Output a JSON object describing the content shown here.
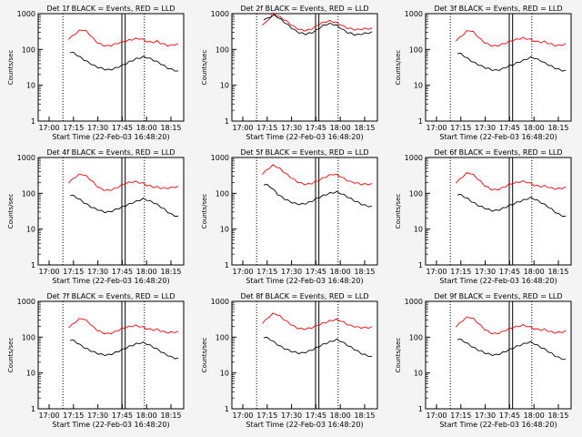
{
  "chart_data": [
    {
      "type": "line",
      "title": "Det 1f BLACK = Events, RED = LLD",
      "xlabel": "Start Time (22-Feb-03 16:48:20)",
      "ylabel": "Counts/sec",
      "x_ticks": [
        "17:00",
        "17:15",
        "17:30",
        "17:45",
        "18:00",
        "18:15"
      ],
      "y_ticks": [
        "1",
        "10",
        "100",
        "1000"
      ],
      "ylim": [
        1,
        1000
      ],
      "yscale": "log",
      "series": [
        {
          "color": "#ff0000",
          "values": [
            200,
            230,
            280,
            330,
            360,
            320,
            260,
            200,
            160,
            140,
            130,
            125,
            130,
            140,
            150,
            160,
            170,
            180,
            190,
            200,
            200,
            190,
            170,
            160,
            160,
            170,
            150,
            140,
            130,
            130,
            140,
            140
          ]
        },
        {
          "color": "#000000",
          "values": [
            85,
            80,
            70,
            60,
            52,
            45,
            40,
            35,
            32,
            30,
            28,
            27,
            28,
            30,
            33,
            36,
            40,
            45,
            50,
            55,
            58,
            62,
            60,
            55,
            50,
            45,
            40,
            35,
            30,
            28,
            26,
            24
          ]
        }
      ]
    },
    {
      "type": "line",
      "title": "Det 2f BLACK = Events, RED = LLD",
      "xlabel": "Start Time (22-Feb-03 16:48:20)",
      "ylabel": "Counts/sec",
      "x_ticks": [
        "17:00",
        "17:15",
        "17:30",
        "17:45",
        "18:00",
        "18:15"
      ],
      "y_ticks": [
        "1",
        "10",
        "100",
        "1000"
      ],
      "ylim": [
        1,
        1000
      ],
      "yscale": "log",
      "series": [
        {
          "color": "#ff0000",
          "values": [
            500,
            550,
            750,
            1000,
            900,
            800,
            700,
            600,
            500,
            430,
            380,
            350,
            340,
            350,
            380,
            430,
            500,
            560,
            600,
            620,
            600,
            560,
            500,
            440,
            400,
            380,
            360,
            360,
            370,
            380,
            380,
            380
          ]
        },
        {
          "color": "#000000",
          "values": [
            700,
            720,
            820,
            900,
            800,
            680,
            570,
            480,
            400,
            340,
            300,
            280,
            270,
            280,
            300,
            340,
            400,
            460,
            500,
            520,
            500,
            460,
            400,
            340,
            300,
            280,
            260,
            260,
            270,
            280,
            290,
            300
          ]
        }
      ]
    },
    {
      "type": "line",
      "title": "Det 3f BLACK = Events, RED = LLD",
      "xlabel": "Start Time (22-Feb-03 16:48:20)",
      "ylabel": "Counts/sec",
      "x_ticks": [
        "17:00",
        "17:15",
        "17:30",
        "17:45",
        "18:00",
        "18:15"
      ],
      "y_ticks": [
        "1",
        "10",
        "100",
        "1000"
      ],
      "ylim": [
        1,
        1000
      ],
      "yscale": "log",
      "series": [
        {
          "color": "#ff0000",
          "values": [
            180,
            210,
            260,
            320,
            340,
            300,
            240,
            190,
            160,
            140,
            130,
            125,
            130,
            140,
            150,
            165,
            180,
            190,
            200,
            210,
            200,
            190,
            175,
            165,
            160,
            165,
            150,
            140,
            130,
            130,
            135,
            140
          ]
        },
        {
          "color": "#000000",
          "values": [
            80,
            75,
            65,
            55,
            48,
            42,
            38,
            34,
            31,
            29,
            27,
            26,
            27,
            29,
            32,
            35,
            38,
            42,
            46,
            50,
            55,
            60,
            58,
            52,
            48,
            42,
            38,
            34,
            30,
            28,
            26,
            25
          ]
        }
      ]
    },
    {
      "type": "line",
      "title": "Det 4f BLACK = Events, RED = LLD",
      "xlabel": "Start Time (22-Feb-03 16:48:20)",
      "ylabel": "Counts/sec",
      "x_ticks": [
        "17:00",
        "17:15",
        "17:30",
        "17:45",
        "18:00",
        "18:15"
      ],
      "y_ticks": [
        "1",
        "10",
        "100",
        "1000"
      ],
      "ylim": [
        1,
        1000
      ],
      "yscale": "log",
      "series": [
        {
          "color": "#ff0000",
          "values": [
            200,
            240,
            290,
            330,
            340,
            300,
            250,
            200,
            160,
            135,
            125,
            120,
            125,
            135,
            150,
            170,
            190,
            200,
            210,
            210,
            200,
            190,
            170,
            160,
            150,
            150,
            140,
            140,
            140,
            145,
            150,
            150
          ]
        },
        {
          "color": "#000000",
          "values": [
            90,
            85,
            75,
            65,
            55,
            48,
            42,
            38,
            35,
            32,
            30,
            30,
            32,
            35,
            38,
            42,
            46,
            50,
            55,
            60,
            65,
            70,
            66,
            60,
            55,
            48,
            42,
            36,
            30,
            26,
            24,
            22
          ]
        }
      ]
    },
    {
      "type": "line",
      "title": "Det 5f BLACK = Events, RED = LLD",
      "xlabel": "Start Time (22-Feb-03 16:48:20)",
      "ylabel": "Counts/sec",
      "x_ticks": [
        "17:00",
        "17:15",
        "17:30",
        "17:45",
        "18:00",
        "18:15"
      ],
      "y_ticks": [
        "1",
        "10",
        "100",
        "1000"
      ],
      "ylim": [
        1,
        1000
      ],
      "yscale": "log",
      "series": [
        {
          "color": "#ff0000",
          "values": [
            350,
            420,
            520,
            600,
            560,
            480,
            400,
            330,
            280,
            240,
            210,
            190,
            180,
            180,
            190,
            210,
            230,
            260,
            290,
            320,
            340,
            330,
            300,
            260,
            230,
            210,
            200,
            190,
            180,
            180,
            180,
            180
          ]
        },
        {
          "color": "#000000",
          "values": [
            180,
            170,
            150,
            120,
            95,
            80,
            70,
            62,
            56,
            52,
            50,
            50,
            52,
            56,
            62,
            70,
            78,
            86,
            94,
            100,
            105,
            108,
            100,
            90,
            80,
            70,
            62,
            56,
            50,
            46,
            44,
            42
          ]
        }
      ]
    },
    {
      "type": "line",
      "title": "Det 6f BLACK = Events, RED = LLD",
      "xlabel": "Start Time (22-Feb-03 16:48:20)",
      "ylabel": "Counts/sec",
      "x_ticks": [
        "17:00",
        "17:15",
        "17:30",
        "17:45",
        "18:00",
        "18:15"
      ],
      "y_ticks": [
        "1",
        "10",
        "100",
        "1000"
      ],
      "ylim": [
        1,
        1000
      ],
      "yscale": "log",
      "series": [
        {
          "color": "#ff0000",
          "values": [
            200,
            240,
            300,
            360,
            370,
            320,
            260,
            210,
            170,
            145,
            130,
            125,
            130,
            140,
            155,
            175,
            190,
            200,
            210,
            215,
            205,
            190,
            170,
            160,
            155,
            160,
            150,
            140,
            135,
            135,
            140,
            145
          ]
        },
        {
          "color": "#000000",
          "values": [
            95,
            90,
            80,
            70,
            60,
            52,
            46,
            42,
            38,
            35,
            33,
            33,
            35,
            38,
            42,
            46,
            50,
            55,
            60,
            65,
            70,
            75,
            70,
            62,
            55,
            48,
            42,
            36,
            30,
            26,
            24,
            22
          ]
        }
      ]
    },
    {
      "type": "line",
      "title": "Det 7f BLACK = Events, RED = LLD",
      "xlabel": "Start Time (22-Feb-03 16:48:20)",
      "ylabel": "Counts/sec",
      "x_ticks": [
        "17:00",
        "17:15",
        "17:30",
        "17:45",
        "18:00",
        "18:15"
      ],
      "y_ticks": [
        "1",
        "10",
        "100",
        "1000"
      ],
      "ylim": [
        1,
        1000
      ],
      "yscale": "log",
      "series": [
        {
          "color": "#ff0000",
          "values": [
            190,
            220,
            270,
            320,
            330,
            290,
            240,
            190,
            160,
            140,
            130,
            125,
            130,
            140,
            155,
            170,
            185,
            195,
            205,
            210,
            200,
            190,
            175,
            165,
            160,
            165,
            150,
            140,
            135,
            135,
            140,
            140
          ]
        },
        {
          "color": "#000000",
          "values": [
            85,
            80,
            70,
            60,
            52,
            46,
            42,
            38,
            35,
            33,
            32,
            32,
            34,
            37,
            41,
            45,
            50,
            55,
            60,
            65,
            68,
            70,
            65,
            58,
            52,
            46,
            40,
            35,
            31,
            28,
            26,
            25
          ]
        }
      ]
    },
    {
      "type": "line",
      "title": "Det 8f BLACK = Events, RED = LLD",
      "xlabel": "Start Time (22-Feb-03 16:48:20)",
      "ylabel": "Counts/sec",
      "x_ticks": [
        "17:00",
        "17:15",
        "17:30",
        "17:45",
        "18:00",
        "18:15"
      ],
      "y_ticks": [
        "1",
        "10",
        "100",
        "1000"
      ],
      "ylim": [
        1,
        1000
      ],
      "yscale": "log",
      "series": [
        {
          "color": "#ff0000",
          "values": [
            250,
            300,
            380,
            450,
            440,
            380,
            320,
            270,
            230,
            200,
            180,
            170,
            170,
            175,
            185,
            200,
            220,
            240,
            260,
            280,
            300,
            310,
            290,
            260,
            230,
            210,
            200,
            190,
            185,
            185,
            185,
            190
          ]
        },
        {
          "color": "#000000",
          "values": [
            100,
            95,
            85,
            72,
            62,
            54,
            48,
            44,
            40,
            38,
            36,
            36,
            38,
            41,
            45,
            50,
            56,
            62,
            68,
            74,
            80,
            85,
            78,
            68,
            60,
            52,
            46,
            40,
            35,
            32,
            30,
            28
          ]
        }
      ]
    },
    {
      "type": "line",
      "title": "Det 9f BLACK = Events, RED = LLD",
      "xlabel": "Start Time (22-Feb-03 16:48:20)",
      "ylabel": "Counts/sec",
      "x_ticks": [
        "17:00",
        "17:15",
        "17:30",
        "17:45",
        "18:00",
        "18:15"
      ],
      "y_ticks": [
        "1",
        "10",
        "100",
        "1000"
      ],
      "ylim": [
        1,
        1000
      ],
      "yscale": "log",
      "series": [
        {
          "color": "#ff0000",
          "values": [
            200,
            240,
            300,
            350,
            360,
            320,
            260,
            210,
            170,
            145,
            130,
            125,
            130,
            140,
            155,
            170,
            185,
            195,
            205,
            215,
            205,
            190,
            175,
            165,
            160,
            165,
            150,
            140,
            135,
            135,
            140,
            145
          ]
        },
        {
          "color": "#000000",
          "values": [
            90,
            85,
            75,
            65,
            56,
            49,
            44,
            40,
            36,
            34,
            32,
            32,
            34,
            37,
            41,
            45,
            50,
            55,
            60,
            65,
            70,
            72,
            66,
            58,
            52,
            46,
            40,
            35,
            30,
            27,
            25,
            23
          ]
        }
      ]
    }
  ]
}
